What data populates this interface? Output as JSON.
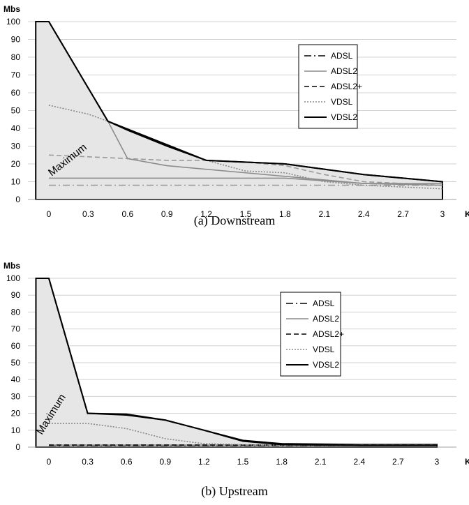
{
  "chart_data": [
    {
      "type": "line",
      "caption": "(a)  Downstream",
      "ylabel": "Mbs",
      "xlabel": "KM",
      "categories": [
        "0",
        "0.3",
        "0.6",
        "0.9",
        "1.2",
        "1.5",
        "1.8",
        "2.1",
        "2.4",
        "2.7",
        "3"
      ],
      "ylim": [
        0,
        100
      ],
      "yticks": [
        0,
        10,
        20,
        30,
        40,
        50,
        60,
        70,
        80,
        90,
        100
      ],
      "grid": "horizontal",
      "legend_position": "top-right",
      "annotation": "Maximum",
      "maximum_envelope": {
        "x": [
          -0.1,
          0,
          0.45,
          1.2,
          1.8,
          2.4,
          3,
          3,
          -0.1
        ],
        "y": [
          100,
          100,
          44,
          22,
          20,
          14,
          10,
          0,
          0
        ]
      },
      "series": [
        {
          "name": "ADSL",
          "style": "dashdot",
          "color": "#9a9a9a",
          "x": [
            0,
            3
          ],
          "y": [
            8,
            8
          ]
        },
        {
          "name": "ADSL2",
          "style": "solid",
          "color": "#8c8c8c",
          "x": [
            0,
            1.8,
            2.4,
            3
          ],
          "y": [
            12,
            12,
            9,
            9
          ]
        },
        {
          "name": "ADSL2+",
          "style": "dashed",
          "color": "#9a9a9a",
          "x": [
            0,
            0.6,
            0.9,
            1.2,
            1.5,
            1.8,
            2.1,
            2.4,
            2.7,
            3
          ],
          "y": [
            25,
            23,
            22,
            22,
            21,
            19,
            14,
            10,
            9,
            8
          ]
        },
        {
          "name": "VDSL",
          "style": "dotted",
          "color": "#888888",
          "x": [
            0,
            0.3,
            0.45,
            0.6,
            0.9,
            1.2,
            1.5,
            1.8,
            2.1,
            2.4,
            2.7,
            3
          ],
          "y": [
            53,
            48,
            44,
            39,
            30,
            22,
            16,
            15,
            10,
            8,
            7,
            6
          ]
        },
        {
          "name": "ADSL2",
          "style": "solid",
          "color": "#8c8c8c",
          "x": [
            0.45,
            0.6,
            0.9,
            1.2,
            1.5,
            1.8,
            2.4,
            3
          ],
          "y": [
            44,
            23,
            19,
            17,
            15,
            13,
            9,
            8
          ],
          "legend": false
        },
        {
          "name": "VDSL2",
          "style": "solid",
          "color": "#000000",
          "x": [
            0,
            0.45,
            0.6,
            0.9,
            1.2,
            1.5,
            1.8,
            2.1,
            2.4,
            2.7,
            3
          ],
          "y": [
            100,
            44,
            39,
            30,
            22,
            21,
            20,
            17,
            14,
            12,
            10
          ]
        }
      ]
    },
    {
      "type": "line",
      "caption": "(b)  Upstream",
      "ylabel": "Mbs",
      "xlabel": "KM",
      "categories": [
        "0",
        "0.3",
        "0.6",
        "0.9",
        "1.2",
        "1.5",
        "1.8",
        "2.1",
        "2.4",
        "2.7",
        "3"
      ],
      "ylim": [
        0,
        100
      ],
      "yticks": [
        0,
        10,
        20,
        30,
        40,
        50,
        60,
        70,
        80,
        90,
        100
      ],
      "grid": "horizontal",
      "legend_position": "right",
      "annotation": "Maximum",
      "maximum_envelope": {
        "x": [
          -0.1,
          0,
          0.3,
          0.6,
          0.9,
          1.2,
          1.5,
          1.8,
          2.4,
          3,
          3,
          -0.1
        ],
        "y": [
          100,
          100,
          20,
          19,
          16,
          10,
          4,
          2,
          1.5,
          1.5,
          0,
          0
        ]
      },
      "series": [
        {
          "name": "ADSL",
          "style": "dashdot",
          "color": "#000000",
          "x": [
            0,
            3
          ],
          "y": [
            1,
            1
          ]
        },
        {
          "name": "ADSL2",
          "style": "solid",
          "color": "#8c8c8c",
          "x": [
            0,
            1.5,
            3
          ],
          "y": [
            1.2,
            1.2,
            1.2
          ]
        },
        {
          "name": "ADSL2+",
          "style": "dashed",
          "color": "#000000",
          "x": [
            0,
            1.5,
            3
          ],
          "y": [
            1.2,
            1.2,
            1.2
          ]
        },
        {
          "name": "VDSL",
          "style": "dotted",
          "color": "#888888",
          "x": [
            0,
            0.3,
            0.6,
            0.9,
            1.2,
            1.5,
            1.8,
            2.1,
            2.4,
            2.7,
            3
          ],
          "y": [
            14,
            14,
            11,
            5,
            2,
            1.5,
            1.2,
            1,
            1,
            1,
            1
          ]
        },
        {
          "name": "VDSL2",
          "style": "solid",
          "color": "#000000",
          "x": [
            0,
            0.3,
            0.6,
            0.9,
            1.2,
            1.5,
            1.8,
            2.1,
            2.4,
            2.7,
            3
          ],
          "y": [
            100,
            20,
            19.5,
            16,
            10,
            3.5,
            1.5,
            1.2,
            1,
            1,
            1
          ]
        }
      ]
    }
  ]
}
